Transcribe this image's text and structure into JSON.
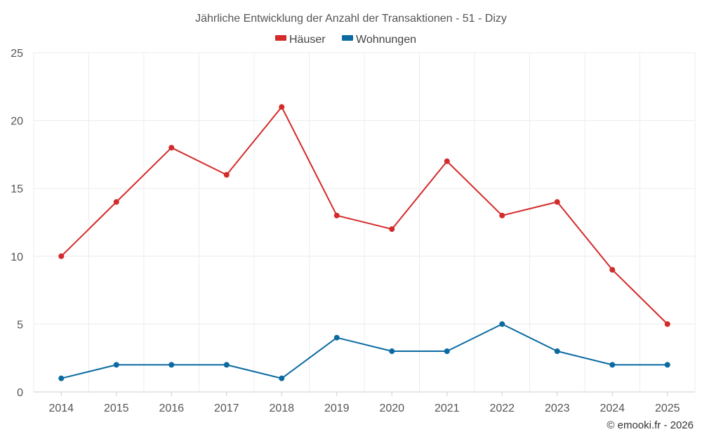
{
  "chart_data": {
    "type": "line",
    "title": "Jährliche Entwicklung der Anzahl der Transaktionen - 51 - Dizy",
    "categories": [
      "2014",
      "2015",
      "2016",
      "2017",
      "2018",
      "2019",
      "2020",
      "2021",
      "2022",
      "2023",
      "2024",
      "2025"
    ],
    "series": [
      {
        "name": "Häuser",
        "color": "#d42a2a",
        "values": [
          10,
          14,
          18,
          16,
          21,
          13,
          12,
          17,
          13,
          14,
          9,
          5
        ]
      },
      {
        "name": "Wohnungen",
        "color": "#0a6aa1",
        "values": [
          1,
          2,
          2,
          2,
          1,
          4,
          3,
          3,
          5,
          3,
          2,
          2
        ]
      }
    ],
    "ylim": [
      0,
      25
    ],
    "yticks": [
      0,
      5,
      10,
      15,
      20,
      25
    ],
    "legend_position": "top-center",
    "grid": true
  },
  "credit": "© emooki.fr - 2026"
}
